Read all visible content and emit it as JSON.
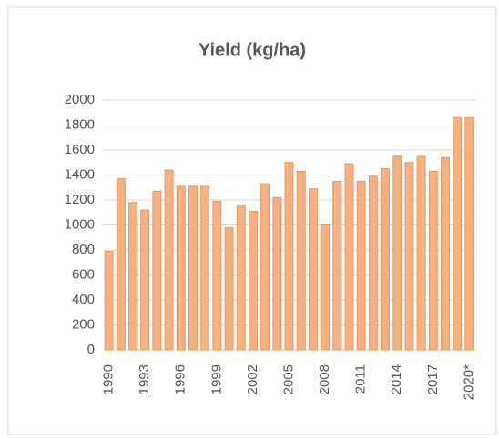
{
  "chart_data": {
    "type": "bar",
    "title": "Yield (kg/ha)",
    "categories": [
      "1990",
      null,
      null,
      "1993",
      null,
      null,
      "1996",
      null,
      null,
      "1999",
      null,
      null,
      "2002",
      null,
      null,
      "2005",
      null,
      null,
      "2008",
      null,
      null,
      "2011",
      null,
      null,
      "2014",
      null,
      null,
      "2017",
      null,
      null,
      "2020*"
    ],
    "values": [
      790,
      1370,
      1180,
      1120,
      1270,
      1440,
      1310,
      1310,
      1310,
      1190,
      980,
      1160,
      1110,
      1330,
      1220,
      1500,
      1430,
      1290,
      1000,
      1350,
      1490,
      1350,
      1390,
      1450,
      1550,
      1500,
      1550,
      1430,
      1540,
      1860,
      1860
    ],
    "color": "#f4b183",
    "ylim": [
      0,
      2000
    ],
    "yticks": [
      0,
      200,
      400,
      600,
      800,
      1000,
      1200,
      1400,
      1600,
      1800,
      2000
    ],
    "grid": true
  }
}
